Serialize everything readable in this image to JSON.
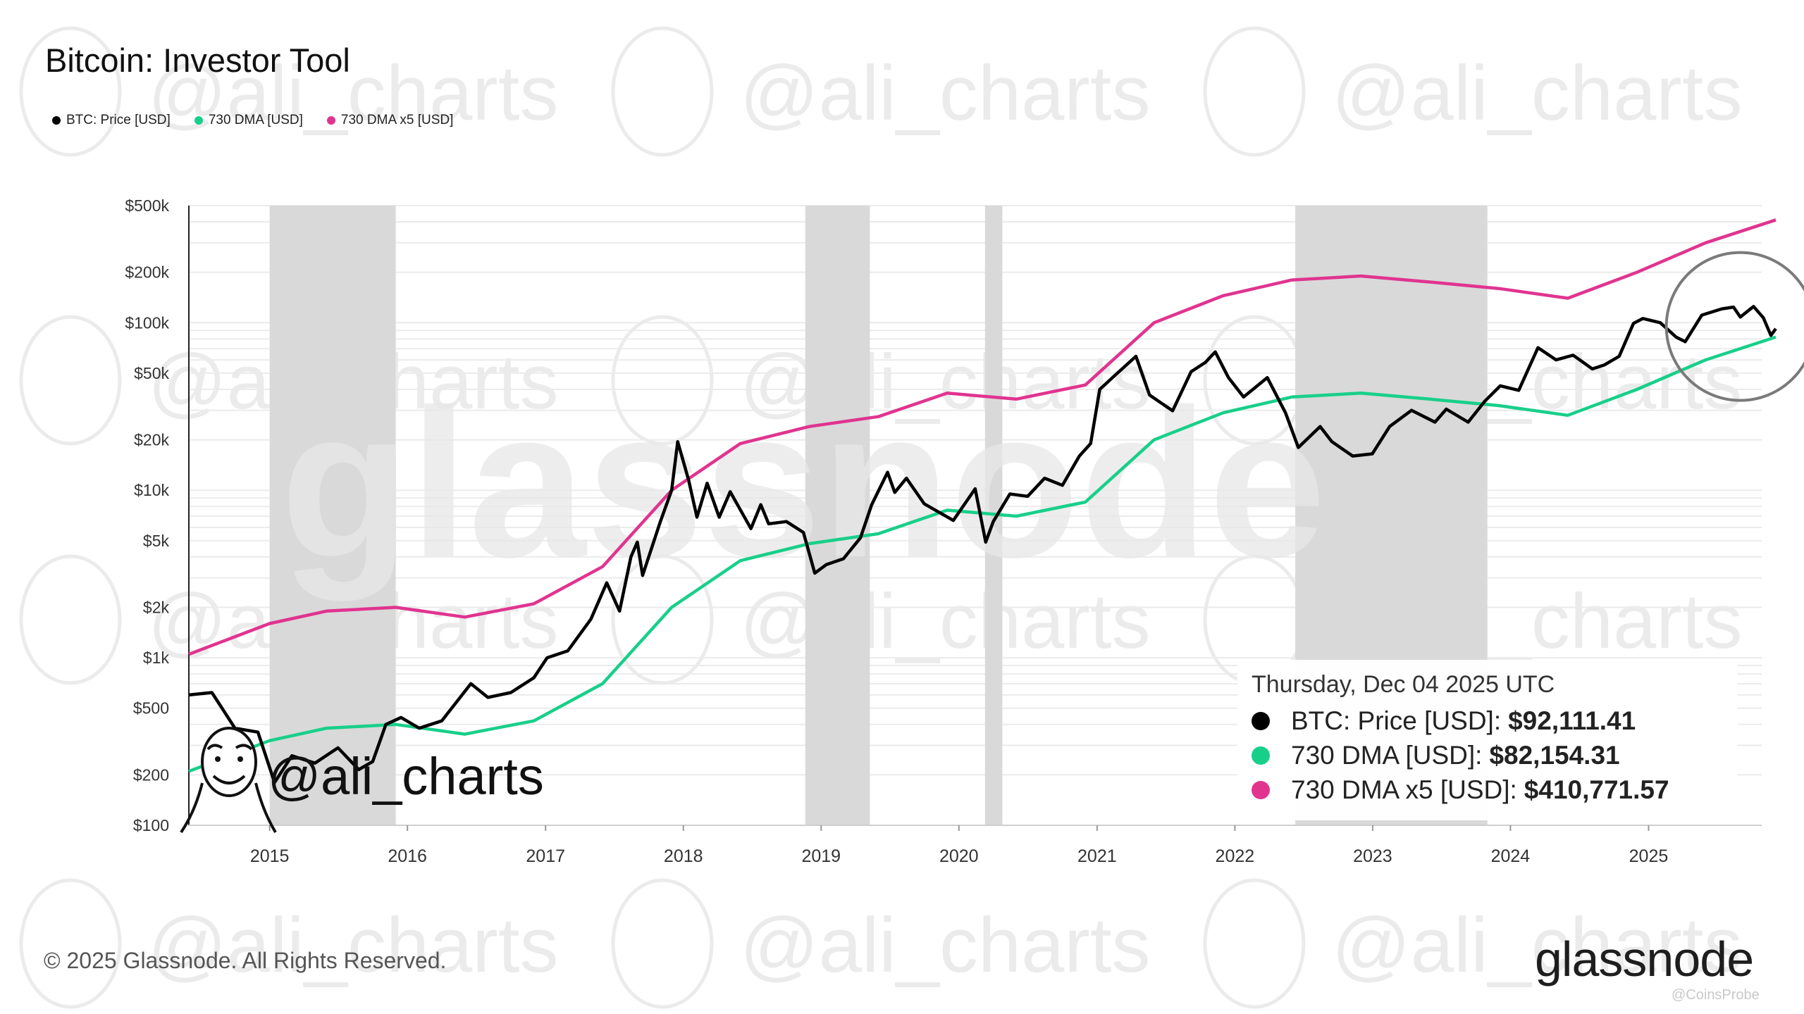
{
  "title": "Bitcoin: Investor Tool",
  "copyright": "© 2025 Glassnode. All Rights Reserved.",
  "brand": "glassnode",
  "watermark_handle": "@ali_charts",
  "source_mark": "@CoinsProbe",
  "colors": {
    "price": "#000000",
    "dma": "#18cf8a",
    "dma_x5": "#e0348f",
    "shade": "#d9d9d9",
    "grid": "#ebebeb",
    "watermark": "#ebebeb",
    "highlight_circle": "#7a7a7a"
  },
  "chart_data": {
    "type": "line",
    "title": "Bitcoin: Investor Tool",
    "y_scale": "log",
    "ylim": [
      100,
      500000
    ],
    "xlim": [
      "2014-06-01",
      "2025-12-04"
    ],
    "y_ticks": [
      {
        "value": 500000,
        "label": "$500k"
      },
      {
        "value": 200000,
        "label": "$200k"
      },
      {
        "value": 100000,
        "label": "$100k"
      },
      {
        "value": 50000,
        "label": "$50k"
      },
      {
        "value": 20000,
        "label": "$20k"
      },
      {
        "value": 10000,
        "label": "$10k"
      },
      {
        "value": 5000,
        "label": "$5k"
      },
      {
        "value": 2000,
        "label": "$2k"
      },
      {
        "value": 1000,
        "label": "$1k"
      },
      {
        "value": 500,
        "label": "$500"
      },
      {
        "value": 200,
        "label": "$200"
      },
      {
        "value": 100,
        "label": "$100"
      }
    ],
    "x_ticks": [
      {
        "value": "2015-01-01",
        "label": "2015"
      },
      {
        "value": "2016-01-01",
        "label": "2016"
      },
      {
        "value": "2017-01-01",
        "label": "2017"
      },
      {
        "value": "2018-01-01",
        "label": "2018"
      },
      {
        "value": "2019-01-01",
        "label": "2019"
      },
      {
        "value": "2020-01-01",
        "label": "2020"
      },
      {
        "value": "2021-01-01",
        "label": "2021"
      },
      {
        "value": "2022-01-01",
        "label": "2022"
      },
      {
        "value": "2023-01-01",
        "label": "2023"
      },
      {
        "value": "2024-01-01",
        "label": "2024"
      },
      {
        "value": "2025-01-01",
        "label": "2025"
      }
    ],
    "grid": true,
    "legend_position": "top-left",
    "shaded_periods": [
      [
        "2015-01-01",
        "2015-12-01"
      ],
      [
        "2018-11-20",
        "2019-05-10"
      ],
      [
        "2020-03-10",
        "2020-04-25"
      ],
      [
        "2022-06-10",
        "2023-11-01"
      ]
    ],
    "highlight": {
      "x": "2025-09-01",
      "y": 95000
    },
    "series": [
      {
        "name": "BTC: Price [USD]",
        "color": "#000000",
        "x": [
          "2014-06-01",
          "2014-08-01",
          "2014-10-01",
          "2014-12-01",
          "2015-01-14",
          "2015-03-01",
          "2015-05-01",
          "2015-07-01",
          "2015-08-25",
          "2015-10-01",
          "2015-11-05",
          "2015-12-15",
          "2016-02-01",
          "2016-04-01",
          "2016-06-17",
          "2016-08-01",
          "2016-10-01",
          "2016-12-01",
          "2017-01-05",
          "2017-03-01",
          "2017-05-01",
          "2017-06-12",
          "2017-07-16",
          "2017-08-15",
          "2017-09-01",
          "2017-09-15",
          "2017-11-01",
          "2017-12-01",
          "2017-12-17",
          "2018-01-15",
          "2018-02-06",
          "2018-03-05",
          "2018-04-06",
          "2018-05-05",
          "2018-06-29",
          "2018-07-25",
          "2018-08-15",
          "2018-10-01",
          "2018-11-15",
          "2018-12-15",
          "2019-01-15",
          "2019-03-01",
          "2019-04-15",
          "2019-05-15",
          "2019-06-26",
          "2019-07-15",
          "2019-08-15",
          "2019-10-01",
          "2019-12-17",
          "2020-02-13",
          "2020-03-12",
          "2020-04-01",
          "2020-05-15",
          "2020-07-01",
          "2020-08-15",
          "2020-10-01",
          "2020-11-15",
          "2020-12-15",
          "2021-01-08",
          "2021-02-15",
          "2021-04-14",
          "2021-05-20",
          "2021-07-20",
          "2021-09-07",
          "2021-10-15",
          "2021-11-10",
          "2021-12-15",
          "2022-01-24",
          "2022-03-28",
          "2022-05-15",
          "2022-06-18",
          "2022-08-15",
          "2022-09-15",
          "2022-11-09",
          "2022-12-31",
          "2023-02-15",
          "2023-04-14",
          "2023-06-15",
          "2023-07-15",
          "2023-09-11",
          "2023-10-25",
          "2023-12-05",
          "2024-01-23",
          "2024-03-14",
          "2024-05-01",
          "2024-06-15",
          "2024-08-05",
          "2024-09-06",
          "2024-10-15",
          "2024-11-22",
          "2024-12-17",
          "2025-02-01",
          "2025-03-15",
          "2025-04-08",
          "2025-05-22",
          "2025-07-14",
          "2025-08-14",
          "2025-09-01",
          "2025-10-06",
          "2025-11-01",
          "2025-11-21",
          "2025-12-04"
        ],
        "values": [
          600,
          620,
          380,
          360,
          180,
          260,
          235,
          290,
          215,
          240,
          400,
          440,
          380,
          420,
          700,
          580,
          620,
          760,
          1000,
          1100,
          1700,
          2800,
          1900,
          4000,
          4900,
          3100,
          6500,
          10000,
          19500,
          11500,
          6900,
          11000,
          6900,
          9800,
          5900,
          8200,
          6300,
          6500,
          5600,
          3200,
          3600,
          3900,
          5200,
          8200,
          12800,
          9700,
          11800,
          8300,
          6600,
          10200,
          4900,
          6500,
          9500,
          9200,
          11800,
          10700,
          16000,
          19000,
          40000,
          48000,
          63000,
          37000,
          29800,
          51000,
          58000,
          67000,
          47000,
          36000,
          47000,
          29000,
          18000,
          24000,
          19500,
          16000,
          16500,
          24000,
          30000,
          25500,
          30500,
          25500,
          34000,
          42000,
          39500,
          71000,
          60000,
          64000,
          53000,
          56000,
          63000,
          99000,
          106000,
          100000,
          82000,
          77000,
          111000,
          121000,
          124000,
          108000,
          125000,
          107000,
          84000,
          92111.41
        ]
      },
      {
        "name": "730 DMA [USD]",
        "color": "#18cf8a",
        "x": [
          "2014-06-01",
          "2015-01-01",
          "2015-06-01",
          "2015-12-01",
          "2016-06-01",
          "2016-12-01",
          "2017-06-01",
          "2017-12-01",
          "2018-06-01",
          "2018-12-01",
          "2019-06-01",
          "2019-12-01",
          "2020-06-01",
          "2020-12-01",
          "2021-06-01",
          "2021-12-01",
          "2022-06-01",
          "2022-12-01",
          "2023-06-01",
          "2023-12-01",
          "2024-06-01",
          "2024-12-01",
          "2025-06-01",
          "2025-12-04"
        ],
        "values": [
          210,
          320,
          380,
          400,
          350,
          420,
          700,
          2000,
          3800,
          4800,
          5500,
          7600,
          7000,
          8500,
          20000,
          29000,
          36000,
          38000,
          35000,
          32000,
          28000,
          40000,
          60000,
          82154.31
        ]
      },
      {
        "name": "730 DMA x5 [USD]",
        "color": "#e0348f",
        "x": [
          "2014-06-01",
          "2015-01-01",
          "2015-06-01",
          "2015-12-01",
          "2016-06-01",
          "2016-12-01",
          "2017-06-01",
          "2017-12-01",
          "2018-06-01",
          "2018-12-01",
          "2019-06-01",
          "2019-12-01",
          "2020-06-01",
          "2020-12-01",
          "2021-06-01",
          "2021-12-01",
          "2022-06-01",
          "2022-12-01",
          "2023-06-01",
          "2023-12-01",
          "2024-06-01",
          "2024-12-01",
          "2025-06-01",
          "2025-12-04"
        ],
        "values": [
          1050,
          1600,
          1900,
          2000,
          1750,
          2100,
          3500,
          10000,
          19000,
          24000,
          27500,
          38000,
          35000,
          42500,
          100000,
          145000,
          180000,
          190000,
          175000,
          160000,
          140000,
          200000,
          300000,
          410771.57
        ]
      }
    ]
  },
  "tooltip": {
    "date": "Thursday, Dec 04 2025 UTC",
    "rows": [
      {
        "label": "BTC: Price [USD]:",
        "value": "$92,111.41",
        "color": "#000000"
      },
      {
        "label": "730 DMA [USD]:",
        "value": "$82,154.31",
        "color": "#18cf8a"
      },
      {
        "label": "730 DMA x5 [USD]:",
        "value": "$410,771.57",
        "color": "#e0348f"
      }
    ]
  }
}
